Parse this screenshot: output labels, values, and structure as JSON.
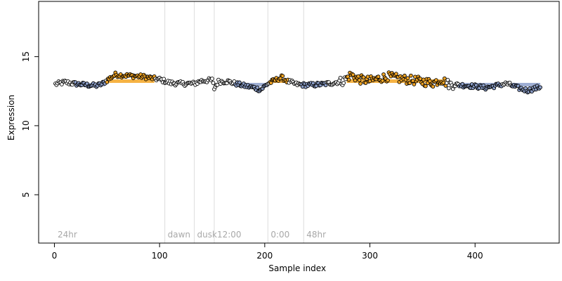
{
  "chart_data": {
    "type": "scatter",
    "xlabel": "Sample index",
    "ylabel": "Expression",
    "xlim": [
      -15,
      480
    ],
    "ylim": [
      1.5,
      19
    ],
    "x_ticks": [
      0,
      100,
      200,
      300,
      400
    ],
    "y_ticks": [
      5,
      10,
      15
    ],
    "grid": false,
    "baseline": 13.1,
    "segment_lines": [
      {
        "x": 105,
        "label": "dawn"
      },
      {
        "x": 133,
        "label": "dusk"
      },
      {
        "x": 152,
        "label": "12:00"
      },
      {
        "x": 203,
        "label": "0:00"
      },
      {
        "x": 237,
        "label": "48hr"
      }
    ],
    "corner_label": {
      "x": 3,
      "label": "24hr"
    },
    "block_colors": {
      "above": "#f5a623",
      "below": "#8da0cb"
    },
    "point_color": "#000000",
    "sample_count": 462,
    "profile": [
      [
        1,
        13.0
      ],
      [
        10,
        13.15
      ],
      [
        18,
        13.05
      ],
      [
        30,
        12.95
      ],
      [
        40,
        12.9
      ],
      [
        45,
        13.0
      ],
      [
        52,
        13.4
      ],
      [
        58,
        13.7
      ],
      [
        65,
        13.65
      ],
      [
        75,
        13.6
      ],
      [
        85,
        13.55
      ],
      [
        92,
        13.45
      ],
      [
        100,
        13.35
      ],
      [
        110,
        13.1
      ],
      [
        120,
        13.05
      ],
      [
        133,
        13.05
      ],
      [
        140,
        13.25
      ],
      [
        150,
        13.3
      ],
      [
        152,
        12.7
      ],
      [
        156,
        13.2
      ],
      [
        165,
        13.2
      ],
      [
        172,
        13.05
      ],
      [
        180,
        12.9
      ],
      [
        190,
        12.75
      ],
      [
        196,
        12.6
      ],
      [
        203,
        13.05
      ],
      [
        210,
        13.3
      ],
      [
        216,
        13.5
      ],
      [
        222,
        13.2
      ],
      [
        230,
        13.0
      ],
      [
        237,
        12.95
      ],
      [
        245,
        12.95
      ],
      [
        255,
        13.0
      ],
      [
        265,
        13.1
      ],
      [
        275,
        13.25
      ],
      [
        282,
        13.7
      ],
      [
        290,
        13.35
      ],
      [
        300,
        13.25
      ],
      [
        310,
        13.45
      ],
      [
        318,
        13.55
      ],
      [
        328,
        13.4
      ],
      [
        340,
        13.3
      ],
      [
        350,
        13.2
      ],
      [
        360,
        13.1
      ],
      [
        368,
        13.35
      ],
      [
        375,
        13.0
      ],
      [
        385,
        12.95
      ],
      [
        400,
        12.85
      ],
      [
        410,
        12.75
      ],
      [
        420,
        12.9
      ],
      [
        430,
        13.05
      ],
      [
        440,
        12.75
      ],
      [
        450,
        12.55
      ],
      [
        462,
        12.8
      ]
    ],
    "blocks": [
      {
        "x0": 20,
        "x1": 48,
        "level": "below"
      },
      {
        "x0": 50,
        "x1": 95,
        "level": "above"
      },
      {
        "x0": 172,
        "x1": 202,
        "level": "below"
      },
      {
        "x0": 205,
        "x1": 222,
        "level": "above"
      },
      {
        "x0": 235,
        "x1": 258,
        "level": "below"
      },
      {
        "x0": 278,
        "x1": 372,
        "level": "above"
      },
      {
        "x0": 385,
        "x1": 425,
        "level": "below"
      },
      {
        "x0": 435,
        "x1": 462,
        "level": "below"
      }
    ]
  }
}
